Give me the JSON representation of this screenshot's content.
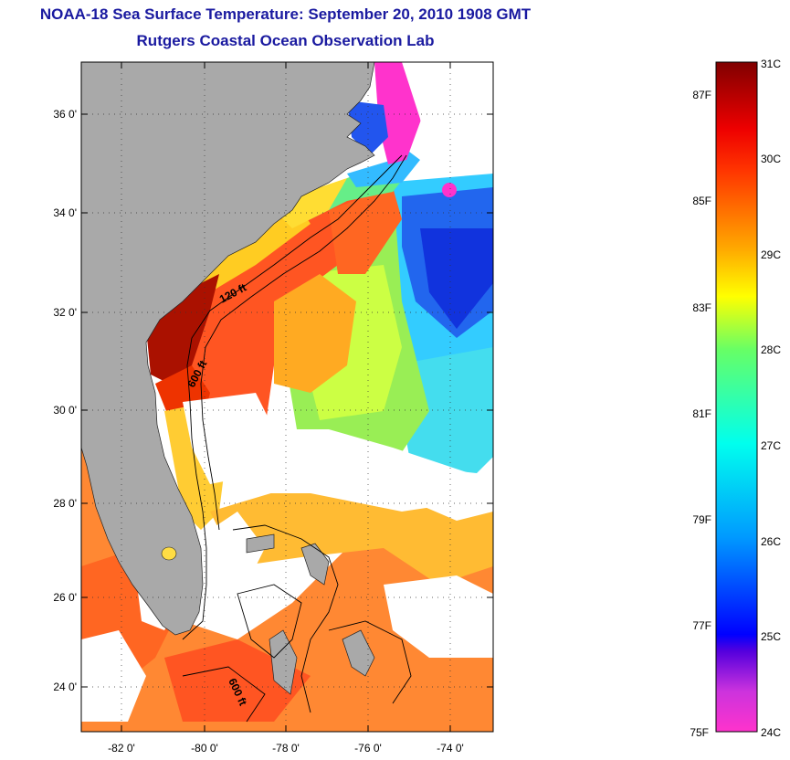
{
  "header": {
    "title": "NOAA-18 Sea Surface Temperature:  September 20, 2010 1908 GMT",
    "subtitle": "Rutgers Coastal Ocean Observation Lab"
  },
  "map": {
    "lat_labels": [
      "36 0'",
      "34 0'",
      "32 0'",
      "30 0'",
      "28 0'",
      "26 0'",
      "24 0'"
    ],
    "lon_labels": [
      "-82 0'",
      "-80 0'",
      "-78 0'",
      "-76 0'",
      "-74 0'"
    ],
    "lat_range": [
      23,
      37.2
    ],
    "lon_range": [
      -83,
      -73
    ],
    "isobath_labels": [
      "120 ft",
      "600 ft",
      "600 ft"
    ],
    "land_color": "#a9a9a9",
    "cloud_color": "#ffffff"
  },
  "colorbar": {
    "celsius_labels": [
      "31C",
      "30C",
      "29C",
      "28C",
      "27C",
      "26C",
      "25C",
      "24C"
    ],
    "fahrenheit_labels": [
      "87F",
      "85F",
      "83F",
      "81F",
      "79F",
      "77F",
      "75F"
    ],
    "range_c": [
      24,
      31
    ],
    "stops": [
      "#ff33cc",
      "#7a1fd6",
      "#0000ff",
      "#0099ff",
      "#00ffee",
      "#66ff66",
      "#ffff00",
      "#ffaa00",
      "#ff4400",
      "#ff0000",
      "#800000"
    ]
  }
}
